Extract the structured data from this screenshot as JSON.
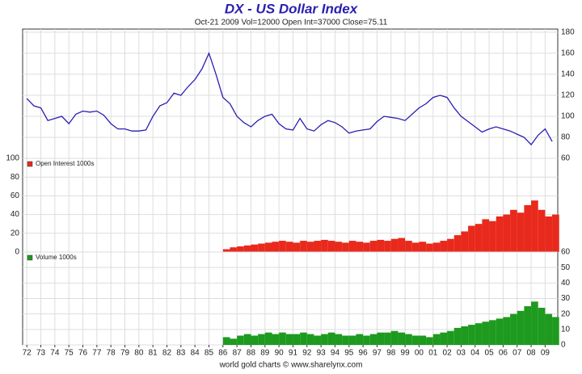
{
  "chart_data": [
    {
      "type": "line",
      "title": "DX  -  US Dollar Index",
      "subtitle": "Oct-21  2009  Vol=12000   Open Int=37000  Close=75.11",
      "color": "#2a1fb0",
      "xlim": [
        1971.7,
        2009.9
      ],
      "ylim": [
        60,
        183
      ],
      "yticks": [
        60,
        80,
        100,
        120,
        140,
        160,
        180
      ],
      "axis_side": "right",
      "grid": true,
      "x": [
        1972,
        1972.5,
        1973,
        1973.5,
        1974,
        1974.5,
        1975,
        1975.5,
        1976,
        1976.5,
        1977,
        1977.5,
        1978,
        1978.5,
        1979,
        1979.5,
        1980,
        1980.5,
        1981,
        1981.5,
        1982,
        1982.5,
        1983,
        1983.5,
        1984,
        1984.5,
        1985,
        1985.5,
        1986,
        1986.5,
        1987,
        1987.5,
        1988,
        1988.5,
        1989,
        1989.5,
        1990,
        1990.5,
        1991,
        1991.5,
        1992,
        1992.5,
        1993,
        1993.5,
        1994,
        1994.5,
        1995,
        1995.5,
        1996,
        1996.5,
        1997,
        1997.5,
        1998,
        1998.5,
        1999,
        1999.5,
        2000,
        2000.5,
        2001,
        2001.5,
        2002,
        2002.5,
        2003,
        2003.5,
        2004,
        2004.5,
        2005,
        2005.5,
        2006,
        2006.5,
        2007,
        2007.5,
        2008,
        2008.5,
        2009,
        2009.5
      ],
      "values": [
        117,
        110,
        108,
        96,
        98,
        100,
        93,
        102,
        105,
        104,
        105,
        101,
        93,
        88,
        88,
        86,
        86,
        87,
        100,
        110,
        113,
        122,
        120,
        128,
        135,
        145,
        160,
        140,
        118,
        112,
        100,
        94,
        90,
        96,
        100,
        102,
        93,
        88,
        87,
        98,
        88,
        86,
        92,
        96,
        94,
        90,
        84,
        86,
        87,
        88,
        95,
        100,
        99,
        98,
        96,
        102,
        108,
        112,
        118,
        120,
        118,
        108,
        100,
        95,
        90,
        85,
        88,
        90,
        88,
        86,
        83,
        80,
        73,
        82,
        88,
        76
      ]
    },
    {
      "type": "bar",
      "xlim": [
        1971.7,
        2009.9
      ],
      "ylim": [
        0,
        100
      ],
      "yticks": [
        0,
        20,
        40,
        60,
        80,
        100
      ],
      "axis_side": "left",
      "grid": true,
      "x": [
        1986,
        1986.5,
        1987,
        1987.5,
        1988,
        1988.5,
        1989,
        1989.5,
        1990,
        1990.5,
        1991,
        1991.5,
        1992,
        1992.5,
        1993,
        1993.5,
        1994,
        1994.5,
        1995,
        1995.5,
        1996,
        1996.5,
        1997,
        1997.5,
        1998,
        1998.5,
        1999,
        1999.5,
        2000,
        2000.5,
        2001,
        2001.5,
        2002,
        2002.5,
        2003,
        2003.5,
        2004,
        2004.5,
        2005,
        2005.5,
        2006,
        2006.5,
        2007,
        2007.5,
        2008,
        2008.5,
        2009,
        2009.5
      ],
      "series": [
        {
          "name": "Open Interest 1000s",
          "color": "#e8291c",
          "values": [
            3,
            5,
            6,
            7,
            8,
            9,
            10,
            11,
            12,
            11,
            10,
            12,
            11,
            12,
            13,
            12,
            11,
            10,
            12,
            11,
            10,
            12,
            13,
            12,
            14,
            15,
            12,
            10,
            11,
            9,
            10,
            12,
            14,
            18,
            22,
            28,
            30,
            35,
            33,
            38,
            40,
            45,
            42,
            50,
            55,
            45,
            38,
            40
          ]
        }
      ]
    },
    {
      "type": "bar",
      "xlim": [
        1971.7,
        2009.9
      ],
      "ylim": [
        0,
        60
      ],
      "yticks": [
        0,
        10,
        20,
        30,
        40,
        50,
        60
      ],
      "axis_side": "right",
      "grid": true,
      "x": [
        1986,
        1986.5,
        1987,
        1987.5,
        1988,
        1988.5,
        1989,
        1989.5,
        1990,
        1990.5,
        1991,
        1991.5,
        1992,
        1992.5,
        1993,
        1993.5,
        1994,
        1994.5,
        1995,
        1995.5,
        1996,
        1996.5,
        1997,
        1997.5,
        1998,
        1998.5,
        1999,
        1999.5,
        2000,
        2000.5,
        2001,
        2001.5,
        2002,
        2002.5,
        2003,
        2003.5,
        2004,
        2004.5,
        2005,
        2005.5,
        2006,
        2006.5,
        2007,
        2007.5,
        2008,
        2008.5,
        2009,
        2009.5
      ],
      "series": [
        {
          "name": "Volume 1000s",
          "color": "#1e9a1e",
          "values": [
            5,
            4,
            6,
            7,
            6,
            7,
            8,
            7,
            8,
            7,
            7,
            8,
            7,
            6,
            7,
            8,
            7,
            6,
            6,
            7,
            6,
            7,
            8,
            8,
            9,
            8,
            7,
            6,
            6,
            5,
            7,
            8,
            9,
            11,
            12,
            13,
            14,
            15,
            16,
            17,
            18,
            20,
            22,
            25,
            28,
            24,
            20,
            18
          ]
        }
      ],
      "xticks": [
        {
          "value": 1972,
          "label": "72"
        },
        {
          "value": 1973,
          "label": "73"
        },
        {
          "value": 1974,
          "label": "74"
        },
        {
          "value": 1975,
          "label": "75"
        },
        {
          "value": 1976,
          "label": "76"
        },
        {
          "value": 1977,
          "label": "77"
        },
        {
          "value": 1978,
          "label": "78"
        },
        {
          "value": 1979,
          "label": "79"
        },
        {
          "value": 1980,
          "label": "80"
        },
        {
          "value": 1981,
          "label": "81"
        },
        {
          "value": 1982,
          "label": "82"
        },
        {
          "value": 1983,
          "label": "83"
        },
        {
          "value": 1984,
          "label": "84"
        },
        {
          "value": 1985,
          "label": "85"
        },
        {
          "value": 1986,
          "label": "86"
        },
        {
          "value": 1987,
          "label": "87"
        },
        {
          "value": 1988,
          "label": "88"
        },
        {
          "value": 1989,
          "label": "89"
        },
        {
          "value": 1990,
          "label": "90"
        },
        {
          "value": 1991,
          "label": "91"
        },
        {
          "value": 1992,
          "label": "92"
        },
        {
          "value": 1993,
          "label": "93"
        },
        {
          "value": 1994,
          "label": "94"
        },
        {
          "value": 1995,
          "label": "95"
        },
        {
          "value": 1996,
          "label": "96"
        },
        {
          "value": 1997,
          "label": "97"
        },
        {
          "value": 1998,
          "label": "98"
        },
        {
          "value": 1999,
          "label": "99"
        },
        {
          "value": 2000,
          "label": "00"
        },
        {
          "value": 2001,
          "label": "01"
        },
        {
          "value": 2002,
          "label": "02"
        },
        {
          "value": 2003,
          "label": "03"
        },
        {
          "value": 2004,
          "label": "04"
        },
        {
          "value": 2005,
          "label": "05"
        },
        {
          "value": 2006,
          "label": "06"
        },
        {
          "value": 2007,
          "label": "07"
        },
        {
          "value": 2008,
          "label": "08"
        },
        {
          "value": 2009,
          "label": "09"
        }
      ],
      "source": "world gold charts © www.sharelynx.com"
    }
  ]
}
